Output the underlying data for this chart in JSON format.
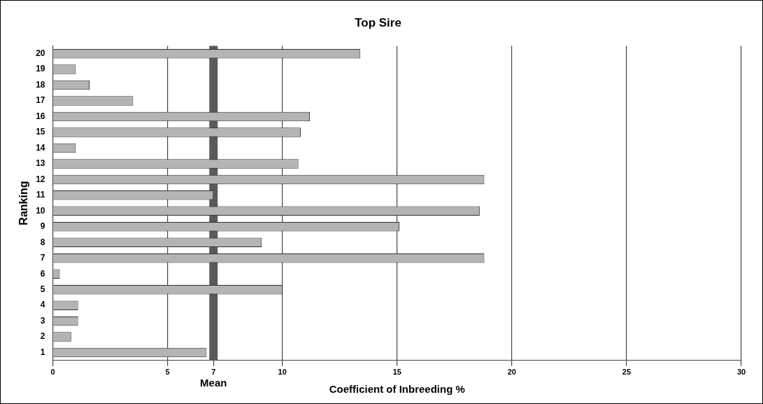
{
  "chart_data": {
    "type": "bar",
    "orientation": "horizontal",
    "title": "Top Sire",
    "xlabel": "Coefficient of Inbreeding %",
    "ylabel": "Ranking",
    "categories": [
      "20",
      "19",
      "18",
      "17",
      "16",
      "15",
      "14",
      "13",
      "12",
      "11",
      "10",
      "9",
      "8",
      "7",
      "6",
      "5",
      "4",
      "3",
      "2",
      "1"
    ],
    "values": [
      13.4,
      1.0,
      1.6,
      3.5,
      11.2,
      10.8,
      1.0,
      10.7,
      18.8,
      7.0,
      18.6,
      15.1,
      9.1,
      18.8,
      0.3,
      10.0,
      1.1,
      1.1,
      0.8,
      6.7
    ],
    "color": "#b4b4b4",
    "xlim": [
      0,
      30
    ],
    "xticks": [
      0,
      5,
      7,
      10,
      15,
      20,
      25,
      30
    ],
    "grid": "x",
    "legend": false,
    "ref_lines": [
      {
        "axis": "x",
        "value": 7,
        "label": "Mean",
        "color": "#5a5a5a"
      }
    ]
  }
}
